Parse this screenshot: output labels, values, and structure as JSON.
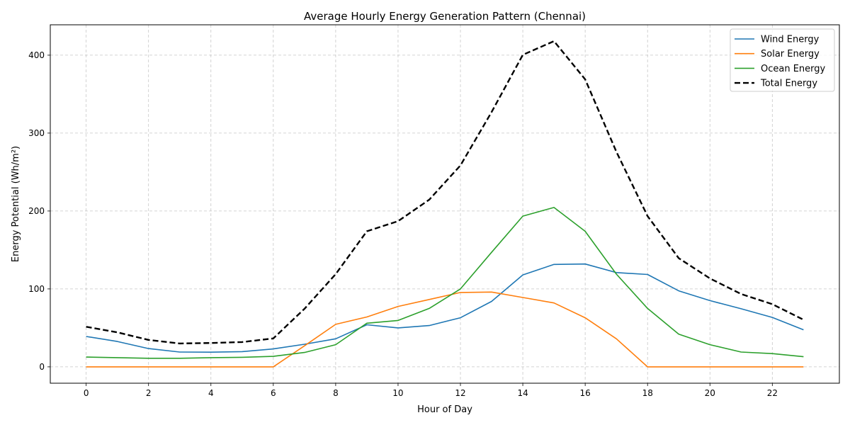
{
  "chart_data": {
    "type": "line",
    "title": "Average Hourly Energy Generation Pattern (Chennai)",
    "xlabel": "Hour of Day",
    "ylabel": "Energy Potential (Wh/m²)",
    "xlim": [
      -1.15,
      24.15
    ],
    "ylim": [
      -21,
      439
    ],
    "xticks": [
      0,
      2,
      4,
      6,
      8,
      10,
      12,
      14,
      16,
      18,
      20,
      22
    ],
    "yticks": [
      0,
      100,
      200,
      300,
      400
    ],
    "grid": true,
    "legend_position": "top-right",
    "x": [
      0,
      1,
      2,
      3,
      4,
      5,
      6,
      7,
      8,
      9,
      10,
      11,
      12,
      13,
      14,
      15,
      16,
      17,
      18,
      19,
      20,
      21,
      22,
      23
    ],
    "series": [
      {
        "name": "Wind Energy",
        "color": "#1f77b4",
        "dashed": false,
        "values": [
          39,
          32.5,
          23.5,
          19,
          18.8,
          19.5,
          23,
          29,
          36,
          54,
          50,
          53,
          63,
          84,
          118,
          131.5,
          132,
          121,
          118.5,
          97.5,
          85,
          74.5,
          63.5,
          47.5
        ]
      },
      {
        "name": "Solar Energy",
        "color": "#ff7f0e",
        "dashed": false,
        "values": [
          0,
          0,
          0,
          0,
          0,
          0,
          0,
          27,
          54.5,
          64,
          77.5,
          86.5,
          95.5,
          96,
          89,
          82,
          63,
          36,
          0,
          0,
          0,
          0,
          0,
          0
        ]
      },
      {
        "name": "Ocean Energy",
        "color": "#2ca02c",
        "dashed": false,
        "values": [
          12.5,
          11.8,
          11,
          11,
          11.8,
          12.3,
          13.5,
          18.5,
          28.5,
          56,
          59.5,
          75,
          100,
          147,
          193.5,
          204.5,
          174,
          119,
          75,
          42,
          28.5,
          19,
          17,
          13
        ]
      },
      {
        "name": "Total Energy",
        "color": "#000000",
        "dashed": true,
        "values": [
          51.5,
          44.3,
          34.5,
          30,
          30.6,
          31.8,
          36.5,
          74.5,
          119,
          174,
          187,
          214.5,
          258.5,
          327,
          400.5,
          418,
          369,
          276,
          193.5,
          139.5,
          113.5,
          93.5,
          80.5,
          60.5
        ]
      }
    ]
  }
}
